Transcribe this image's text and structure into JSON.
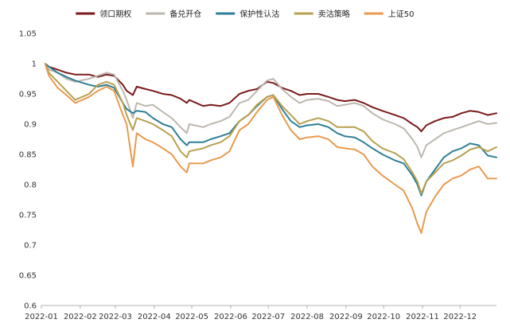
{
  "chart_data": {
    "type": "line",
    "title": "",
    "xlabel": "",
    "ylabel": "",
    "ylim": [
      0.6,
      1.05
    ],
    "yticks": [
      "1.05",
      "1",
      "0.95",
      "0.9",
      "0.85",
      "0.8",
      "0.75",
      "0.7",
      "0.65",
      "0.6"
    ],
    "xlim": [
      "2022-01-01",
      "2022-12-30"
    ],
    "xticks": [
      "2022-01",
      "2022-02",
      "2022-03",
      "2022-04",
      "2022-05",
      "2022-06",
      "2022-07",
      "2022-08",
      "2022-09",
      "2022-10",
      "2022-11",
      "2022-12"
    ],
    "grid": false,
    "legend_position": "top",
    "series": [
      {
        "name": "领口期权",
        "color": "#7b1a1a",
        "points": [
          [
            "2022-01-04",
            1.0
          ],
          [
            "2022-01-07",
            0.995
          ],
          [
            "2022-01-14",
            0.99
          ],
          [
            "2022-01-21",
            0.985
          ],
          [
            "2022-01-28",
            0.982
          ],
          [
            "2022-02-08",
            0.982
          ],
          [
            "2022-02-15",
            0.978
          ],
          [
            "2022-02-22",
            0.982
          ],
          [
            "2022-02-28",
            0.98
          ],
          [
            "2022-03-07",
            0.965
          ],
          [
            "2022-03-10",
            0.955
          ],
          [
            "2022-03-15",
            0.948
          ],
          [
            "2022-03-18",
            0.962
          ],
          [
            "2022-03-25",
            0.958
          ],
          [
            "2022-03-31",
            0.955
          ],
          [
            "2022-04-08",
            0.95
          ],
          [
            "2022-04-15",
            0.948
          ],
          [
            "2022-04-22",
            0.942
          ],
          [
            "2022-04-27",
            0.935
          ],
          [
            "2022-04-29",
            0.94
          ],
          [
            "2022-05-10",
            0.93
          ],
          [
            "2022-05-16",
            0.932
          ],
          [
            "2022-05-24",
            0.93
          ],
          [
            "2022-05-31",
            0.935
          ],
          [
            "2022-06-08",
            0.95
          ],
          [
            "2022-06-15",
            0.955
          ],
          [
            "2022-06-22",
            0.958
          ],
          [
            "2022-06-30",
            0.97
          ],
          [
            "2022-07-05",
            0.968
          ],
          [
            "2022-07-12",
            0.96
          ],
          [
            "2022-07-19",
            0.955
          ],
          [
            "2022-07-26",
            0.948
          ],
          [
            "2022-08-01",
            0.95
          ],
          [
            "2022-08-10",
            0.95
          ],
          [
            "2022-08-18",
            0.945
          ],
          [
            "2022-08-25",
            0.94
          ],
          [
            "2022-08-31",
            0.938
          ],
          [
            "2022-09-08",
            0.94
          ],
          [
            "2022-09-15",
            0.935
          ],
          [
            "2022-09-22",
            0.928
          ],
          [
            "2022-09-30",
            0.922
          ],
          [
            "2022-10-10",
            0.915
          ],
          [
            "2022-10-17",
            0.91
          ],
          [
            "2022-10-24",
            0.9
          ],
          [
            "2022-10-28",
            0.895
          ],
          [
            "2022-10-31",
            0.888
          ],
          [
            "2022-11-04",
            0.898
          ],
          [
            "2022-11-11",
            0.905
          ],
          [
            "2022-11-18",
            0.91
          ],
          [
            "2022-11-25",
            0.912
          ],
          [
            "2022-12-02",
            0.918
          ],
          [
            "2022-12-09",
            0.922
          ],
          [
            "2022-12-16",
            0.92
          ],
          [
            "2022-12-23",
            0.915
          ],
          [
            "2022-12-30",
            0.918
          ]
        ]
      },
      {
        "name": "备兑开仓",
        "color": "#bdb8ae",
        "points": [
          [
            "2022-01-04",
            1.0
          ],
          [
            "2022-01-07",
            0.99
          ],
          [
            "2022-01-14",
            0.985
          ],
          [
            "2022-01-21",
            0.975
          ],
          [
            "2022-01-28",
            0.97
          ],
          [
            "2022-02-08",
            0.975
          ],
          [
            "2022-02-15",
            0.98
          ],
          [
            "2022-02-22",
            0.985
          ],
          [
            "2022-02-28",
            0.982
          ],
          [
            "2022-03-07",
            0.955
          ],
          [
            "2022-03-10",
            0.94
          ],
          [
            "2022-03-15",
            0.91
          ],
          [
            "2022-03-18",
            0.935
          ],
          [
            "2022-03-25",
            0.93
          ],
          [
            "2022-03-31",
            0.932
          ],
          [
            "2022-04-08",
            0.92
          ],
          [
            "2022-04-15",
            0.91
          ],
          [
            "2022-04-22",
            0.895
          ],
          [
            "2022-04-27",
            0.885
          ],
          [
            "2022-04-29",
            0.9
          ],
          [
            "2022-05-10",
            0.895
          ],
          [
            "2022-05-16",
            0.9
          ],
          [
            "2022-05-24",
            0.905
          ],
          [
            "2022-05-31",
            0.912
          ],
          [
            "2022-06-08",
            0.935
          ],
          [
            "2022-06-15",
            0.94
          ],
          [
            "2022-06-22",
            0.955
          ],
          [
            "2022-06-30",
            0.972
          ],
          [
            "2022-07-05",
            0.975
          ],
          [
            "2022-07-12",
            0.958
          ],
          [
            "2022-07-19",
            0.945
          ],
          [
            "2022-07-26",
            0.935
          ],
          [
            "2022-08-01",
            0.94
          ],
          [
            "2022-08-10",
            0.942
          ],
          [
            "2022-08-18",
            0.938
          ],
          [
            "2022-08-25",
            0.93
          ],
          [
            "2022-08-31",
            0.932
          ],
          [
            "2022-09-08",
            0.935
          ],
          [
            "2022-09-15",
            0.93
          ],
          [
            "2022-09-22",
            0.918
          ],
          [
            "2022-09-30",
            0.908
          ],
          [
            "2022-10-10",
            0.9
          ],
          [
            "2022-10-17",
            0.893
          ],
          [
            "2022-10-24",
            0.875
          ],
          [
            "2022-10-28",
            0.862
          ],
          [
            "2022-10-31",
            0.845
          ],
          [
            "2022-11-04",
            0.865
          ],
          [
            "2022-11-11",
            0.875
          ],
          [
            "2022-11-18",
            0.885
          ],
          [
            "2022-11-25",
            0.89
          ],
          [
            "2022-12-02",
            0.895
          ],
          [
            "2022-12-09",
            0.9
          ],
          [
            "2022-12-16",
            0.905
          ],
          [
            "2022-12-23",
            0.9
          ],
          [
            "2022-12-30",
            0.902
          ]
        ]
      },
      {
        "name": "保护性认沽",
        "color": "#2f7f96",
        "points": [
          [
            "2022-01-04",
            1.0
          ],
          [
            "2022-01-07",
            0.995
          ],
          [
            "2022-01-14",
            0.985
          ],
          [
            "2022-01-21",
            0.978
          ],
          [
            "2022-01-28",
            0.972
          ],
          [
            "2022-02-08",
            0.965
          ],
          [
            "2022-02-15",
            0.962
          ],
          [
            "2022-02-22",
            0.965
          ],
          [
            "2022-02-28",
            0.96
          ],
          [
            "2022-03-07",
            0.935
          ],
          [
            "2022-03-10",
            0.925
          ],
          [
            "2022-03-15",
            0.918
          ],
          [
            "2022-03-18",
            0.922
          ],
          [
            "2022-03-25",
            0.92
          ],
          [
            "2022-03-31",
            0.91
          ],
          [
            "2022-04-08",
            0.9
          ],
          [
            "2022-04-15",
            0.895
          ],
          [
            "2022-04-22",
            0.875
          ],
          [
            "2022-04-27",
            0.865
          ],
          [
            "2022-04-29",
            0.87
          ],
          [
            "2022-05-10",
            0.87
          ],
          [
            "2022-05-16",
            0.875
          ],
          [
            "2022-05-24",
            0.88
          ],
          [
            "2022-05-31",
            0.885
          ],
          [
            "2022-06-08",
            0.905
          ],
          [
            "2022-06-15",
            0.915
          ],
          [
            "2022-06-22",
            0.93
          ],
          [
            "2022-06-30",
            0.945
          ],
          [
            "2022-07-05",
            0.948
          ],
          [
            "2022-07-12",
            0.925
          ],
          [
            "2022-07-19",
            0.905
          ],
          [
            "2022-07-26",
            0.895
          ],
          [
            "2022-08-01",
            0.898
          ],
          [
            "2022-08-10",
            0.9
          ],
          [
            "2022-08-18",
            0.895
          ],
          [
            "2022-08-25",
            0.885
          ],
          [
            "2022-08-31",
            0.88
          ],
          [
            "2022-09-08",
            0.878
          ],
          [
            "2022-09-15",
            0.87
          ],
          [
            "2022-09-22",
            0.86
          ],
          [
            "2022-09-30",
            0.85
          ],
          [
            "2022-10-10",
            0.84
          ],
          [
            "2022-10-17",
            0.835
          ],
          [
            "2022-10-24",
            0.815
          ],
          [
            "2022-10-28",
            0.8
          ],
          [
            "2022-10-31",
            0.782
          ],
          [
            "2022-11-04",
            0.805
          ],
          [
            "2022-11-11",
            0.825
          ],
          [
            "2022-11-18",
            0.845
          ],
          [
            "2022-11-25",
            0.855
          ],
          [
            "2022-12-02",
            0.86
          ],
          [
            "2022-12-09",
            0.868
          ],
          [
            "2022-12-16",
            0.865
          ],
          [
            "2022-12-23",
            0.848
          ],
          [
            "2022-12-30",
            0.845
          ]
        ]
      },
      {
        "name": "卖沽策略",
        "color": "#b8a050",
        "points": [
          [
            "2022-01-04",
            1.0
          ],
          [
            "2022-01-07",
            0.985
          ],
          [
            "2022-01-14",
            0.97
          ],
          [
            "2022-01-21",
            0.955
          ],
          [
            "2022-01-28",
            0.94
          ],
          [
            "2022-02-08",
            0.95
          ],
          [
            "2022-02-15",
            0.965
          ],
          [
            "2022-02-22",
            0.97
          ],
          [
            "2022-02-28",
            0.965
          ],
          [
            "2022-03-07",
            0.935
          ],
          [
            "2022-03-10",
            0.915
          ],
          [
            "2022-03-15",
            0.89
          ],
          [
            "2022-03-18",
            0.91
          ],
          [
            "2022-03-25",
            0.905
          ],
          [
            "2022-03-31",
            0.9
          ],
          [
            "2022-04-08",
            0.89
          ],
          [
            "2022-04-15",
            0.88
          ],
          [
            "2022-04-22",
            0.855
          ],
          [
            "2022-04-27",
            0.845
          ],
          [
            "2022-04-29",
            0.855
          ],
          [
            "2022-05-10",
            0.86
          ],
          [
            "2022-05-16",
            0.865
          ],
          [
            "2022-05-24",
            0.87
          ],
          [
            "2022-05-31",
            0.88
          ],
          [
            "2022-06-08",
            0.905
          ],
          [
            "2022-06-15",
            0.915
          ],
          [
            "2022-06-22",
            0.932
          ],
          [
            "2022-06-30",
            0.945
          ],
          [
            "2022-07-05",
            0.948
          ],
          [
            "2022-07-12",
            0.93
          ],
          [
            "2022-07-19",
            0.915
          ],
          [
            "2022-07-26",
            0.9
          ],
          [
            "2022-08-01",
            0.905
          ],
          [
            "2022-08-10",
            0.91
          ],
          [
            "2022-08-18",
            0.905
          ],
          [
            "2022-08-25",
            0.895
          ],
          [
            "2022-08-31",
            0.895
          ],
          [
            "2022-09-08",
            0.895
          ],
          [
            "2022-09-15",
            0.888
          ],
          [
            "2022-09-22",
            0.872
          ],
          [
            "2022-09-30",
            0.86
          ],
          [
            "2022-10-10",
            0.852
          ],
          [
            "2022-10-17",
            0.842
          ],
          [
            "2022-10-24",
            0.82
          ],
          [
            "2022-10-28",
            0.805
          ],
          [
            "2022-10-31",
            0.785
          ],
          [
            "2022-11-04",
            0.805
          ],
          [
            "2022-11-11",
            0.82
          ],
          [
            "2022-11-18",
            0.835
          ],
          [
            "2022-11-25",
            0.84
          ],
          [
            "2022-12-02",
            0.848
          ],
          [
            "2022-12-09",
            0.858
          ],
          [
            "2022-12-16",
            0.862
          ],
          [
            "2022-12-23",
            0.855
          ],
          [
            "2022-12-30",
            0.862
          ]
        ]
      },
      {
        "name": "上证50",
        "color": "#e89a4e",
        "points": [
          [
            "2022-01-04",
            1.0
          ],
          [
            "2022-01-07",
            0.98
          ],
          [
            "2022-01-14",
            0.96
          ],
          [
            "2022-01-21",
            0.948
          ],
          [
            "2022-01-28",
            0.935
          ],
          [
            "2022-02-08",
            0.945
          ],
          [
            "2022-02-15",
            0.955
          ],
          [
            "2022-02-22",
            0.962
          ],
          [
            "2022-02-28",
            0.955
          ],
          [
            "2022-03-07",
            0.915
          ],
          [
            "2022-03-10",
            0.9
          ],
          [
            "2022-03-15",
            0.83
          ],
          [
            "2022-03-18",
            0.885
          ],
          [
            "2022-03-25",
            0.875
          ],
          [
            "2022-03-31",
            0.87
          ],
          [
            "2022-04-08",
            0.86
          ],
          [
            "2022-04-15",
            0.85
          ],
          [
            "2022-04-22",
            0.83
          ],
          [
            "2022-04-27",
            0.82
          ],
          [
            "2022-04-29",
            0.835
          ],
          [
            "2022-05-10",
            0.835
          ],
          [
            "2022-05-16",
            0.84
          ],
          [
            "2022-05-24",
            0.845
          ],
          [
            "2022-05-31",
            0.855
          ],
          [
            "2022-06-08",
            0.89
          ],
          [
            "2022-06-15",
            0.9
          ],
          [
            "2022-06-22",
            0.92
          ],
          [
            "2022-06-30",
            0.94
          ],
          [
            "2022-07-05",
            0.945
          ],
          [
            "2022-07-12",
            0.915
          ],
          [
            "2022-07-19",
            0.89
          ],
          [
            "2022-07-26",
            0.875
          ],
          [
            "2022-08-01",
            0.878
          ],
          [
            "2022-08-10",
            0.88
          ],
          [
            "2022-08-18",
            0.875
          ],
          [
            "2022-08-25",
            0.862
          ],
          [
            "2022-08-31",
            0.86
          ],
          [
            "2022-09-08",
            0.858
          ],
          [
            "2022-09-15",
            0.85
          ],
          [
            "2022-09-22",
            0.83
          ],
          [
            "2022-09-30",
            0.815
          ],
          [
            "2022-10-10",
            0.8
          ],
          [
            "2022-10-17",
            0.79
          ],
          [
            "2022-10-24",
            0.76
          ],
          [
            "2022-10-28",
            0.735
          ],
          [
            "2022-10-31",
            0.72
          ],
          [
            "2022-11-04",
            0.755
          ],
          [
            "2022-11-11",
            0.78
          ],
          [
            "2022-11-18",
            0.8
          ],
          [
            "2022-11-25",
            0.81
          ],
          [
            "2022-12-02",
            0.815
          ],
          [
            "2022-12-09",
            0.825
          ],
          [
            "2022-12-16",
            0.83
          ],
          [
            "2022-12-23",
            0.81
          ],
          [
            "2022-12-30",
            0.81
          ]
        ]
      }
    ]
  }
}
